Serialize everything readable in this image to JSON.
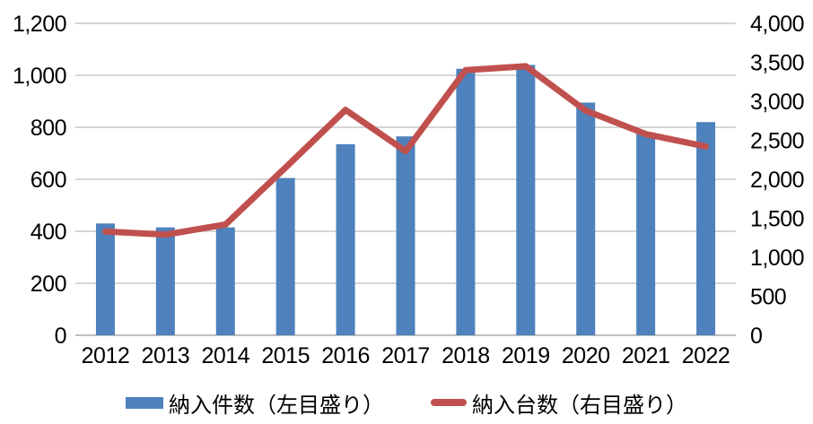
{
  "chart_data": {
    "type": "combo",
    "title": "",
    "categories": [
      "2012",
      "2013",
      "2014",
      "2015",
      "2016",
      "2017",
      "2018",
      "2019",
      "2020",
      "2021",
      "2022"
    ],
    "series": [
      {
        "name": "納入件数（左目盛り）",
        "type": "bar",
        "axis": "left",
        "color": "#4F81BD",
        "values": [
          430,
          415,
          415,
          605,
          735,
          765,
          1025,
          1040,
          895,
          780,
          820
        ]
      },
      {
        "name": "納入台数（右目盛り）",
        "type": "line",
        "axis": "right",
        "color": "#C0504D",
        "values": [
          1330,
          1290,
          1420,
          2150,
          2890,
          2360,
          3400,
          3450,
          2880,
          2580,
          2420
        ]
      }
    ],
    "left_axis": {
      "min": 0,
      "max": 1200,
      "step": 200,
      "tick_labels": [
        "0",
        "200",
        "400",
        "600",
        "800",
        "1,000",
        "1,200"
      ]
    },
    "right_axis": {
      "min": 0,
      "max": 4000,
      "step": 500,
      "tick_labels": [
        "0",
        "500",
        "1,000",
        "1,500",
        "2,000",
        "2,500",
        "3,000",
        "3,500",
        "4,000"
      ]
    },
    "grid": true,
    "legend_position": "bottom",
    "gridline_color": "#D6D6D6",
    "axis_line_color": "#BFBFBF",
    "text_color": "#000000",
    "background_color": "#FFFFFF"
  }
}
